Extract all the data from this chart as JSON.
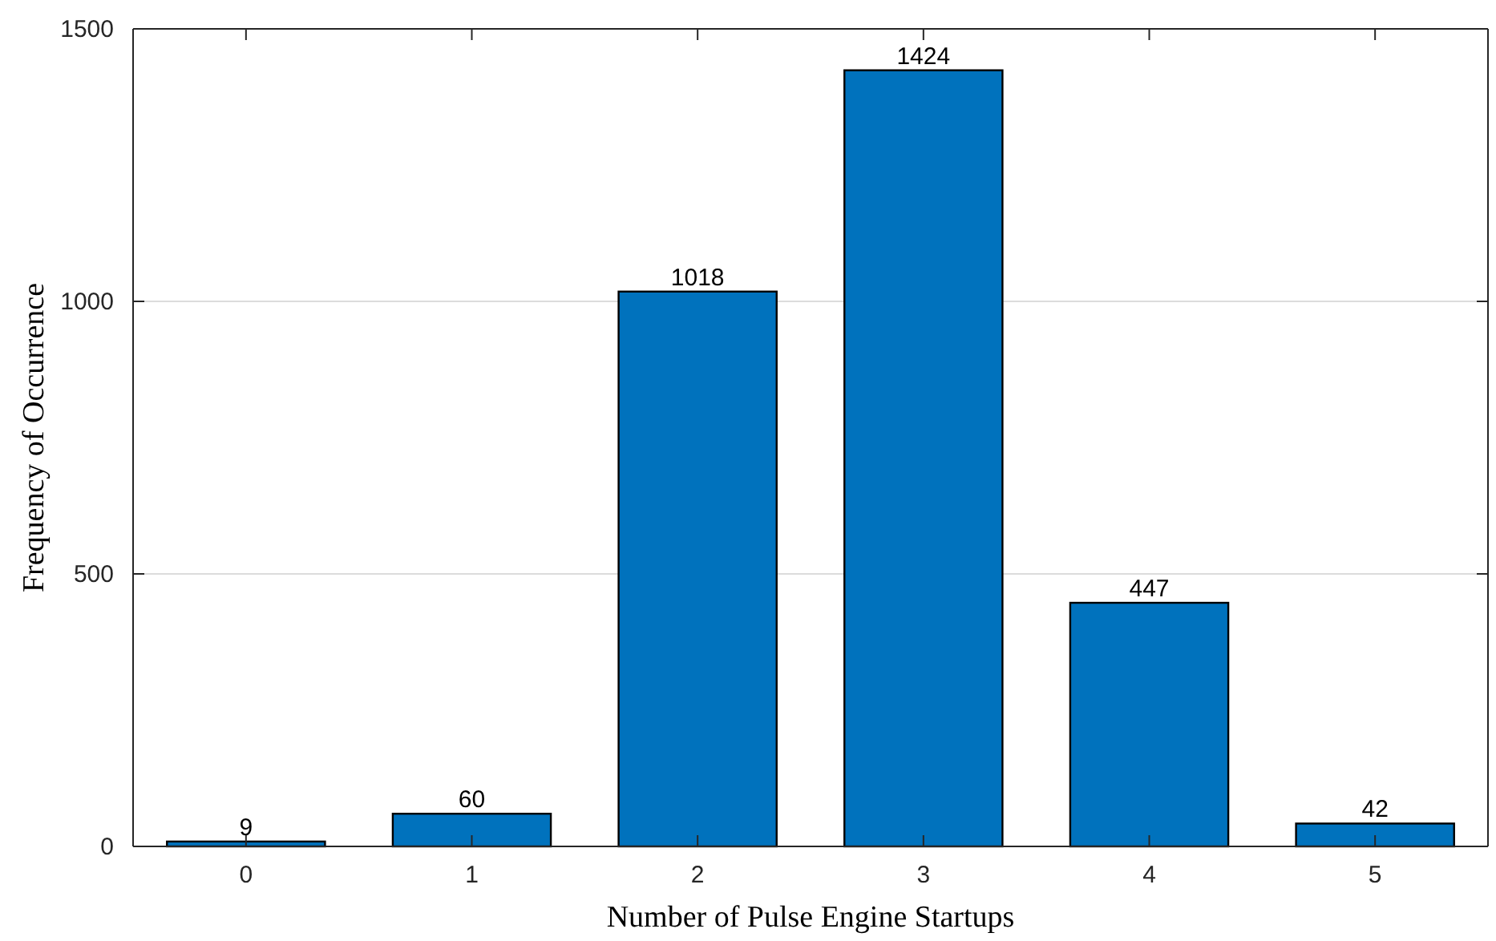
{
  "chart_data": {
    "type": "bar",
    "xlabel": "Number of Pulse Engine Startups",
    "ylabel": "Frequency of Occurrence",
    "categories": [
      "0",
      "1",
      "2",
      "3",
      "4",
      "5"
    ],
    "values": [
      9,
      60,
      1018,
      1424,
      447,
      42
    ],
    "color": "#0072bd",
    "ylim": [
      0,
      1500
    ],
    "yticks": [
      0,
      500,
      1000,
      1500
    ],
    "grid": "y",
    "data_labels": true
  }
}
